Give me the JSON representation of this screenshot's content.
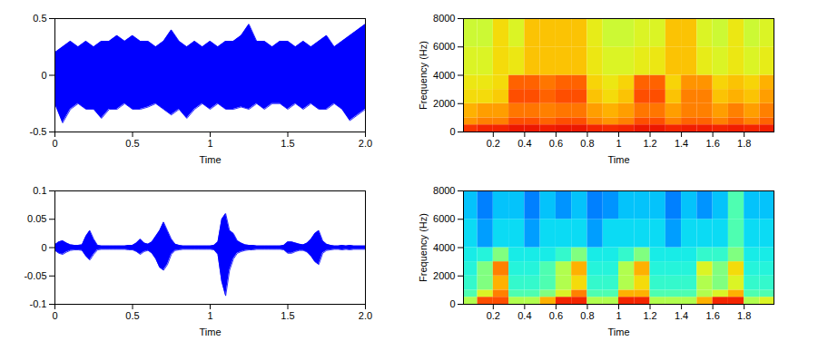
{
  "chart_data": [
    {
      "type": "band",
      "xlabel": "Time",
      "color": "#0000ff",
      "xlim": [
        0,
        2
      ],
      "xticks": [
        0,
        0.5,
        1,
        1.5,
        {
          "value": 2,
          "label": "2.0"
        }
      ],
      "ylim": [
        -0.5,
        0.5
      ],
      "yticks": [
        -0.5,
        0,
        0.5
      ],
      "x": [
        0,
        0.05,
        0.1,
        0.15,
        0.2,
        0.25,
        0.3,
        0.35,
        0.4,
        0.45,
        0.5,
        0.55,
        0.6,
        0.65,
        0.7,
        0.75,
        0.8,
        0.85,
        0.9,
        0.95,
        1,
        1.05,
        1.1,
        1.15,
        1.2,
        1.25,
        1.3,
        1.35,
        1.4,
        1.45,
        1.5,
        1.55,
        1.6,
        1.65,
        1.7,
        1.75,
        1.8,
        1.85,
        1.9,
        1.95,
        2
      ],
      "upper": [
        0.2,
        0.25,
        0.3,
        0.25,
        0.3,
        0.25,
        0.3,
        0.3,
        0.35,
        0.3,
        0.35,
        0.3,
        0.3,
        0.25,
        0.3,
        0.4,
        0.3,
        0.25,
        0.3,
        0.25,
        0.3,
        0.25,
        0.3,
        0.3,
        0.35,
        0.45,
        0.3,
        0.3,
        0.25,
        0.3,
        0.3,
        0.25,
        0.3,
        0.25,
        0.3,
        0.35,
        0.25,
        0.3,
        0.35,
        0.4,
        0.45
      ],
      "lower": [
        -0.25,
        -0.42,
        -0.3,
        -0.25,
        -0.3,
        -0.3,
        -0.38,
        -0.3,
        -0.3,
        -0.25,
        -0.3,
        -0.3,
        -0.28,
        -0.25,
        -0.3,
        -0.35,
        -0.3,
        -0.38,
        -0.3,
        -0.25,
        -0.3,
        -0.25,
        -0.3,
        -0.3,
        -0.28,
        -0.3,
        -0.25,
        -0.3,
        -0.25,
        -0.25,
        -0.3,
        -0.25,
        -0.3,
        -0.25,
        -0.3,
        -0.3,
        -0.25,
        -0.3,
        -0.4,
        -0.35,
        -0.3
      ]
    },
    {
      "type": "heatmap",
      "xlabel": "Time",
      "ylabel": "Frequency (Hz)",
      "xlim": [
        0.01,
        1.99
      ],
      "xticks": [
        0.2,
        0.4,
        0.6,
        0.8,
        1,
        1.2,
        1.4,
        1.6,
        1.8
      ],
      "ylim": [
        0,
        8000
      ],
      "yticks": [
        0,
        2000,
        4000,
        6000,
        8000
      ],
      "color_range": [
        0,
        10
      ],
      "x_edges": [
        0,
        0.1,
        0.2,
        0.3,
        0.4,
        0.5,
        0.6,
        0.7,
        0.8,
        0.9,
        1,
        1.1,
        1.2,
        1.3,
        1.4,
        1.5,
        1.6,
        1.7,
        1.8,
        1.9,
        2
      ],
      "y_edges": [
        0,
        500,
        1000,
        2000,
        3000,
        4000,
        6000,
        8000
      ],
      "cells": [
        [
          8.3,
          8.5,
          8.5,
          8.7,
          8.7,
          8.6,
          8.7,
          8.7,
          8.5,
          8.4,
          8.5,
          8.7,
          8.7,
          8.5,
          8.6,
          8.6,
          8.5,
          8.6,
          8.5,
          8.6
        ],
        [
          7.3,
          7.5,
          7.5,
          8,
          8,
          7.8,
          8,
          8,
          7.5,
          7.3,
          7.5,
          8,
          8,
          7.5,
          7.8,
          7.8,
          7.5,
          7.8,
          7.5,
          7.8
        ],
        [
          7,
          7.2,
          7.2,
          7.6,
          7.6,
          7.5,
          7.6,
          7.6,
          7.2,
          7,
          7.2,
          7.6,
          7.6,
          7.2,
          7.5,
          7.5,
          7.2,
          7.5,
          7.2,
          7.5
        ],
        [
          6.5,
          6.5,
          6.7,
          8,
          8,
          7.8,
          8,
          8,
          6.8,
          6.5,
          6.8,
          8,
          8,
          6.8,
          7.5,
          7.5,
          6.8,
          7,
          6.8,
          7.2
        ],
        [
          6.3,
          6.3,
          6.5,
          7.8,
          7.8,
          7.6,
          7.8,
          7.8,
          6.6,
          6.3,
          6.6,
          7.8,
          7.8,
          6.6,
          7.3,
          7.3,
          6.6,
          6.8,
          6.6,
          7
        ],
        [
          6,
          6,
          6.5,
          6.3,
          6.8,
          6.8,
          6.8,
          6.8,
          6.3,
          6,
          6,
          6.2,
          6.3,
          6.8,
          6.8,
          6.2,
          6,
          6.3,
          6,
          6.2
        ],
        [
          5.8,
          5.8,
          6.5,
          6,
          6.8,
          6.8,
          6.8,
          6.8,
          6.2,
          5.8,
          5.8,
          6,
          6,
          6.8,
          6.8,
          6,
          5.8,
          6.3,
          5.8,
          6
        ]
      ]
    },
    {
      "type": "band",
      "xlabel": "Time",
      "color": "#0000ff",
      "xlim": [
        0,
        2
      ],
      "xticks": [
        0,
        0.5,
        1,
        1.5,
        {
          "value": 2,
          "label": "2.0"
        }
      ],
      "ylim": [
        -0.1,
        0.1
      ],
      "yticks": [
        -0.1,
        -0.05,
        0,
        0.05,
        0.1
      ],
      "x": [
        0,
        0.025,
        0.05,
        0.075,
        0.1,
        0.125,
        0.15,
        0.175,
        0.2,
        0.225,
        0.25,
        0.275,
        0.3,
        0.325,
        0.35,
        0.375,
        0.4,
        0.425,
        0.45,
        0.475,
        0.5,
        0.525,
        0.55,
        0.575,
        0.6,
        0.625,
        0.65,
        0.675,
        0.7,
        0.725,
        0.75,
        0.775,
        0.8,
        0.825,
        0.85,
        0.875,
        0.9,
        0.925,
        0.95,
        0.975,
        1,
        1.025,
        1.05,
        1.075,
        1.1,
        1.125,
        1.15,
        1.175,
        1.2,
        1.225,
        1.25,
        1.275,
        1.3,
        1.325,
        1.35,
        1.375,
        1.4,
        1.425,
        1.45,
        1.475,
        1.5,
        1.525,
        1.55,
        1.575,
        1.6,
        1.625,
        1.65,
        1.675,
        1.7,
        1.725,
        1.75,
        1.775,
        1.8,
        1.825,
        1.85,
        1.875,
        1.9,
        1.925,
        1.95,
        1.975,
        2
      ],
      "upper": [
        0.005,
        0.01,
        0.012,
        0.008,
        0.005,
        0.004,
        0.004,
        0.005,
        0.02,
        0.03,
        0.015,
        0.004,
        0.003,
        0.003,
        0.003,
        0.003,
        0.003,
        0.003,
        0.003,
        0.004,
        0.004,
        0.008,
        0.015,
        0.008,
        0.006,
        0.01,
        0.02,
        0.03,
        0.045,
        0.03,
        0.015,
        0.006,
        0.004,
        0.003,
        0.003,
        0.003,
        0.003,
        0.003,
        0.003,
        0.003,
        0.003,
        0.004,
        0.01,
        0.05,
        0.06,
        0.03,
        0.025,
        0.012,
        0.008,
        0.005,
        0.004,
        0.004,
        0.003,
        0.003,
        0.003,
        0.003,
        0.003,
        0.003,
        0.003,
        0.004,
        0.01,
        0.01,
        0.008,
        0.006,
        0.005,
        0.008,
        0.015,
        0.025,
        0.03,
        0.012,
        0.006,
        0.004,
        0.003,
        0.003,
        0.004,
        0.003,
        0.004,
        0.003,
        0.003,
        0.003,
        0.003
      ],
      "lower": [
        -0.005,
        -0.01,
        -0.012,
        -0.008,
        -0.005,
        -0.004,
        -0.004,
        -0.005,
        -0.015,
        -0.022,
        -0.012,
        -0.004,
        -0.003,
        -0.003,
        -0.003,
        -0.003,
        -0.003,
        -0.003,
        -0.003,
        -0.004,
        -0.004,
        -0.007,
        -0.012,
        -0.007,
        -0.005,
        -0.01,
        -0.02,
        -0.035,
        -0.04,
        -0.03,
        -0.012,
        -0.005,
        -0.004,
        -0.003,
        -0.003,
        -0.003,
        -0.003,
        -0.003,
        -0.003,
        -0.003,
        -0.003,
        -0.004,
        -0.012,
        -0.06,
        -0.085,
        -0.04,
        -0.02,
        -0.01,
        -0.007,
        -0.005,
        -0.004,
        -0.004,
        -0.003,
        -0.003,
        -0.003,
        -0.003,
        -0.003,
        -0.003,
        -0.003,
        -0.004,
        -0.01,
        -0.01,
        -0.007,
        -0.005,
        -0.005,
        -0.008,
        -0.015,
        -0.025,
        -0.03,
        -0.01,
        -0.005,
        -0.004,
        -0.003,
        -0.003,
        -0.004,
        -0.003,
        -0.004,
        -0.003,
        -0.003,
        -0.003,
        -0.003
      ]
    },
    {
      "type": "heatmap",
      "xlabel": "Time",
      "ylabel": "Frequency (Hz)",
      "xlim": [
        0.01,
        1.99
      ],
      "xticks": [
        0.2,
        0.4,
        0.6,
        0.8,
        1,
        1.2,
        1.4,
        1.6,
        1.8
      ],
      "ylim": [
        0,
        8000
      ],
      "yticks": [
        0,
        2000,
        4000,
        6000,
        8000
      ],
      "color_range": [
        0,
        10
      ],
      "x_edges": [
        0,
        0.1,
        0.2,
        0.3,
        0.4,
        0.5,
        0.6,
        0.7,
        0.8,
        0.9,
        1,
        1.1,
        1.2,
        1.3,
        1.4,
        1.5,
        1.6,
        1.7,
        1.8,
        1.9,
        2
      ],
      "y_edges": [
        0,
        500,
        1000,
        2000,
        3000,
        4000,
        6000,
        8000
      ],
      "cells": [
        [
          5.5,
          8,
          8,
          5.5,
          5.5,
          7,
          8.5,
          8.5,
          5.5,
          5.5,
          8.5,
          8.5,
          5.5,
          5.5,
          5.5,
          7,
          8.5,
          8.5,
          5.5,
          6
        ],
        [
          4.5,
          6,
          7.5,
          4.5,
          4.5,
          5,
          6,
          7.5,
          4.5,
          4.5,
          7,
          7,
          4.5,
          4.5,
          4.5,
          5.5,
          6,
          7,
          4.5,
          4.5
        ],
        [
          4.2,
          5,
          7,
          4.2,
          4.2,
          4.5,
          5.5,
          6.5,
          4.2,
          4.2,
          5.5,
          6.5,
          4.2,
          4.2,
          4.2,
          5.5,
          5,
          6,
          4.2,
          4.2
        ],
        [
          4,
          5,
          7.5,
          4,
          4,
          4.5,
          5.5,
          7,
          4,
          4,
          5.5,
          7,
          4,
          4,
          4,
          6,
          5,
          6.5,
          4,
          4
        ],
        [
          3.8,
          4,
          5,
          3.8,
          3.8,
          3.8,
          4.2,
          5,
          3.8,
          3.8,
          4.2,
          5,
          3.8,
          3.8,
          3.8,
          4.2,
          4.2,
          5,
          3.8,
          3.8
        ],
        [
          3.5,
          2.8,
          3.5,
          3.5,
          2.8,
          3.5,
          3.5,
          3.5,
          2.8,
          3.5,
          3.5,
          3.5,
          3.5,
          2.8,
          3.5,
          3.5,
          3.5,
          4.5,
          3.5,
          3.5
        ],
        [
          3.2,
          2.5,
          3.2,
          3.2,
          2.5,
          3.2,
          2.7,
          3.2,
          2.5,
          2.7,
          3.2,
          3.2,
          3.2,
          2.5,
          3.2,
          2.7,
          3.2,
          4.5,
          3.2,
          3.2
        ]
      ]
    }
  ]
}
